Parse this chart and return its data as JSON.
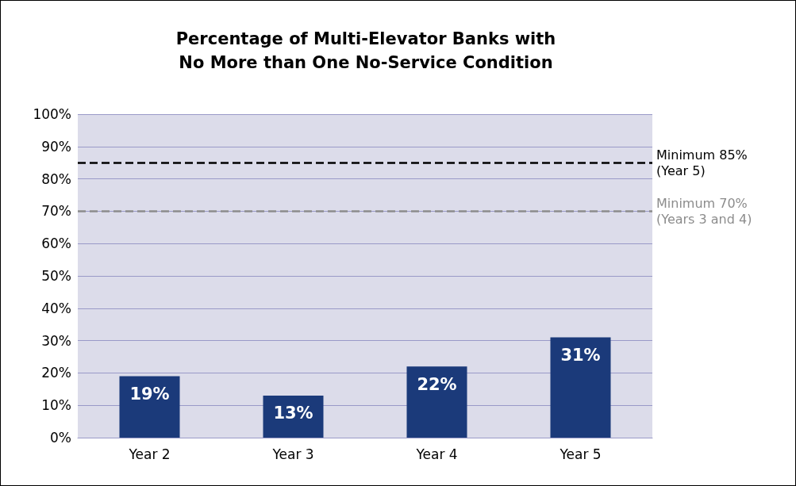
{
  "chart_data": {
    "type": "bar",
    "title": "Percentage of Multi-Elevator Banks with\nNo More than One No-Service Condition",
    "categories": [
      "Year 2",
      "Year 3",
      "Year 4",
      "Year 5"
    ],
    "values": [
      19,
      13,
      22,
      31
    ],
    "color": "#1b3a7a",
    "value_labels": [
      "19%",
      "13%",
      "22%",
      "31%"
    ],
    "ylim": [
      0,
      100
    ],
    "yticks": [
      {
        "value": 0,
        "label": "0%"
      },
      {
        "value": 10,
        "label": "10%"
      },
      {
        "value": 20,
        "label": "20%"
      },
      {
        "value": 30,
        "label": "30%"
      },
      {
        "value": 40,
        "label": "40%"
      },
      {
        "value": 50,
        "label": "50%"
      },
      {
        "value": 60,
        "label": "60%"
      },
      {
        "value": 70,
        "label": "70%"
      },
      {
        "value": 80,
        "label": "80%"
      },
      {
        "value": 90,
        "label": "90%"
      },
      {
        "value": 100,
        "label": "100%"
      }
    ],
    "grid": "y",
    "ref_lines": [
      {
        "axis": "y",
        "value": 85,
        "label": "Minimum 85%\n(Year 5)",
        "color": "#000000",
        "line_style": "dashed"
      },
      {
        "axis": "y",
        "value": 70,
        "label": "Minimum 70%\n(Years 3 and 4)",
        "color": "#8c8c8c",
        "line_style": "dashed"
      }
    ]
  }
}
